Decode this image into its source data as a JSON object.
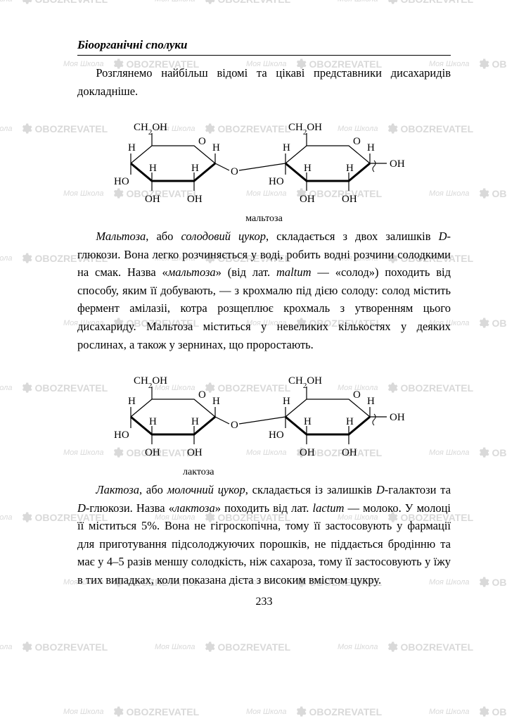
{
  "header": {
    "section_title": "Біоорганічні сполуки"
  },
  "paragraphs": {
    "intro": "Розглянемо найбільш відомі та цікаві представники дисахаридів докладніше.",
    "maltose": "Мальтоза, або солодовий цукор, складається з двох залишків D-глюкози. Вона легко розчиняється у воді, робить водні розчини солодкими на смак. Назва «мальтоза» (від лат. maltum — «солод») походить від способу, яким її добувають, — з крохмалю під дією солоду: солод містить фермент амілазіі, котра розщеплює крохмаль з утворенням цього дисахариду. Мальтоза міститься у невеликих кількостях у деяких рослинах, а також у зернинах, що проростають.",
    "lactose": "Лактоза, або молочний цукор, складається із залишків D-галактози та D-глюкози. Назва «лактоза» походить від лат. lactum — молоко. У молоці її міститься 5%. Вона не гігроскопічна, тому її застосовують у фармації для приготування підсолоджуючих порошків, не піддається бродінню та має у 4–5 разів меншу солодкість, ніж сахароза, тому її застосовують у їжу в тих випадках, коли показана дієта з високим вмістом цукру."
  },
  "figures": {
    "maltose_label": "мальтоза",
    "lactose_label": "лактоза"
  },
  "pagenum": "233",
  "watermark": {
    "moya": "Моя Школа",
    "oboz": "OBOZREVATEL"
  },
  "chem": {
    "stroke": "#000000",
    "bold_stroke_width": 3,
    "thin_stroke_width": 1.2,
    "font_size": 15,
    "sub_size": 11
  }
}
